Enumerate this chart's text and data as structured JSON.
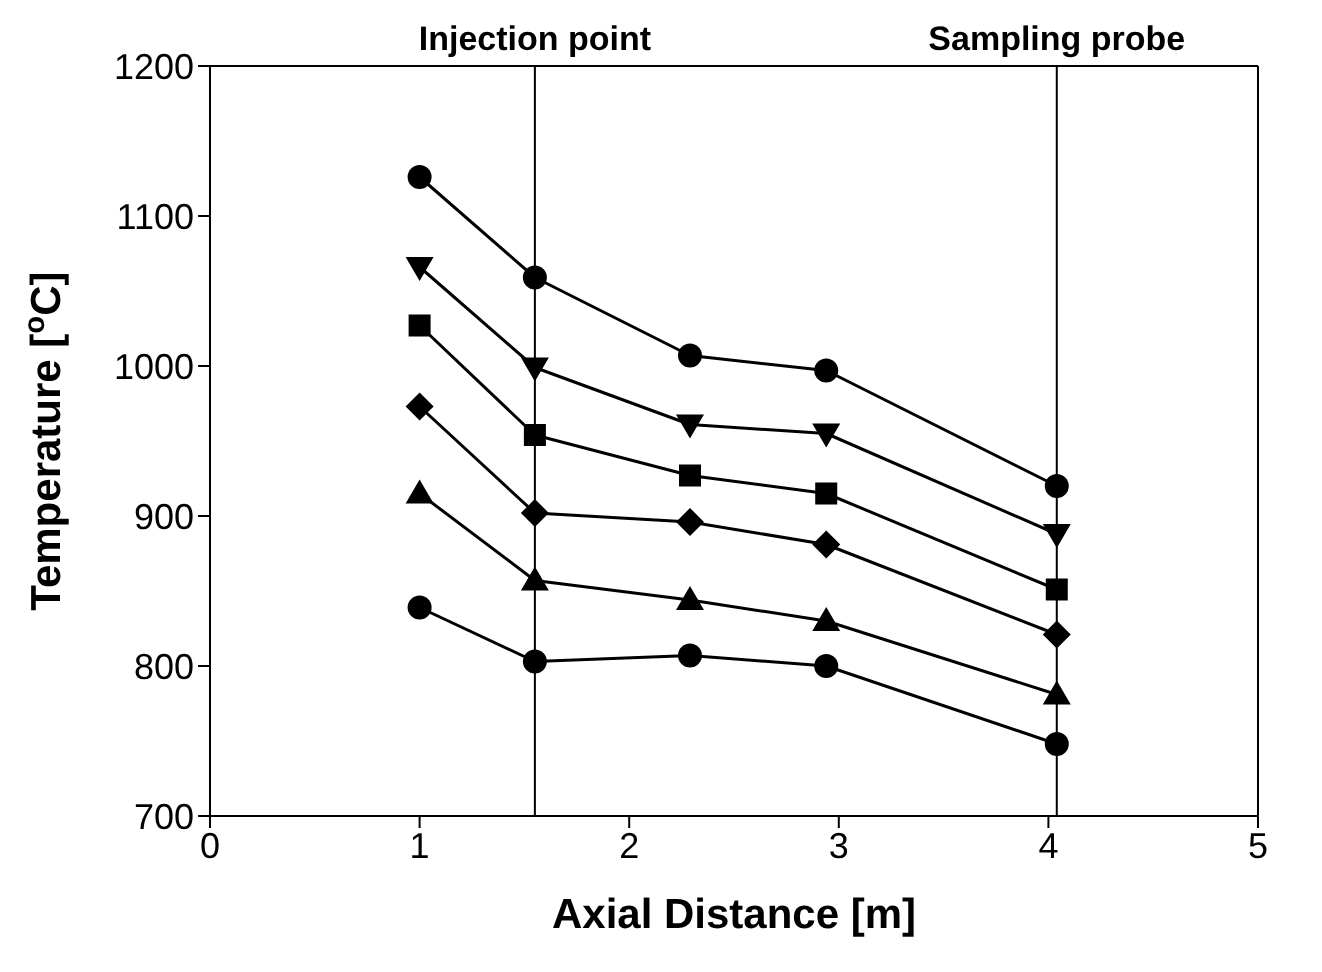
{
  "chart_data": {
    "type": "line",
    "xlabel": "Axial Distance [m]",
    "ylabel": "Temperature [$^{o}$C]",
    "x": [
      1.0,
      1.55,
      2.29,
      2.94,
      4.04
    ],
    "series": [
      {
        "color": "#000000",
        "marker": "circle",
        "values": [
          1126,
          1059,
          1007,
          997,
          920
        ]
      },
      {
        "color": "#000000",
        "marker": "triangle-down",
        "values": [
          1066,
          999,
          961,
          955,
          888
        ]
      },
      {
        "color": "#000000",
        "marker": "square",
        "values": [
          1027,
          954,
          927,
          915,
          851
        ]
      },
      {
        "color": "#000000",
        "marker": "diamond",
        "values": [
          973,
          902,
          896,
          881,
          821
        ]
      },
      {
        "color": "#000000",
        "marker": "triangle",
        "values": [
          915,
          857,
          844,
          830,
          781
        ]
      },
      {
        "color": "#000000",
        "marker": "circle",
        "values": [
          839,
          803,
          807,
          800,
          748
        ]
      }
    ],
    "xlim": [
      0,
      5
    ],
    "xticks": [
      0,
      1,
      2,
      3,
      4,
      5
    ],
    "ylim": [
      700,
      1200
    ],
    "yticks": [
      700,
      800,
      900,
      1000,
      1100,
      1200
    ],
    "ref_lines": [
      {
        "axis": "x",
        "value": 1.55,
        "label": "Injection point",
        "color": "#000000"
      },
      {
        "axis": "x",
        "value": 4.04,
        "label": "Sampling probe",
        "color": "#000000"
      }
    ],
    "grid": false,
    "legend": false,
    "line_style": "solid"
  }
}
